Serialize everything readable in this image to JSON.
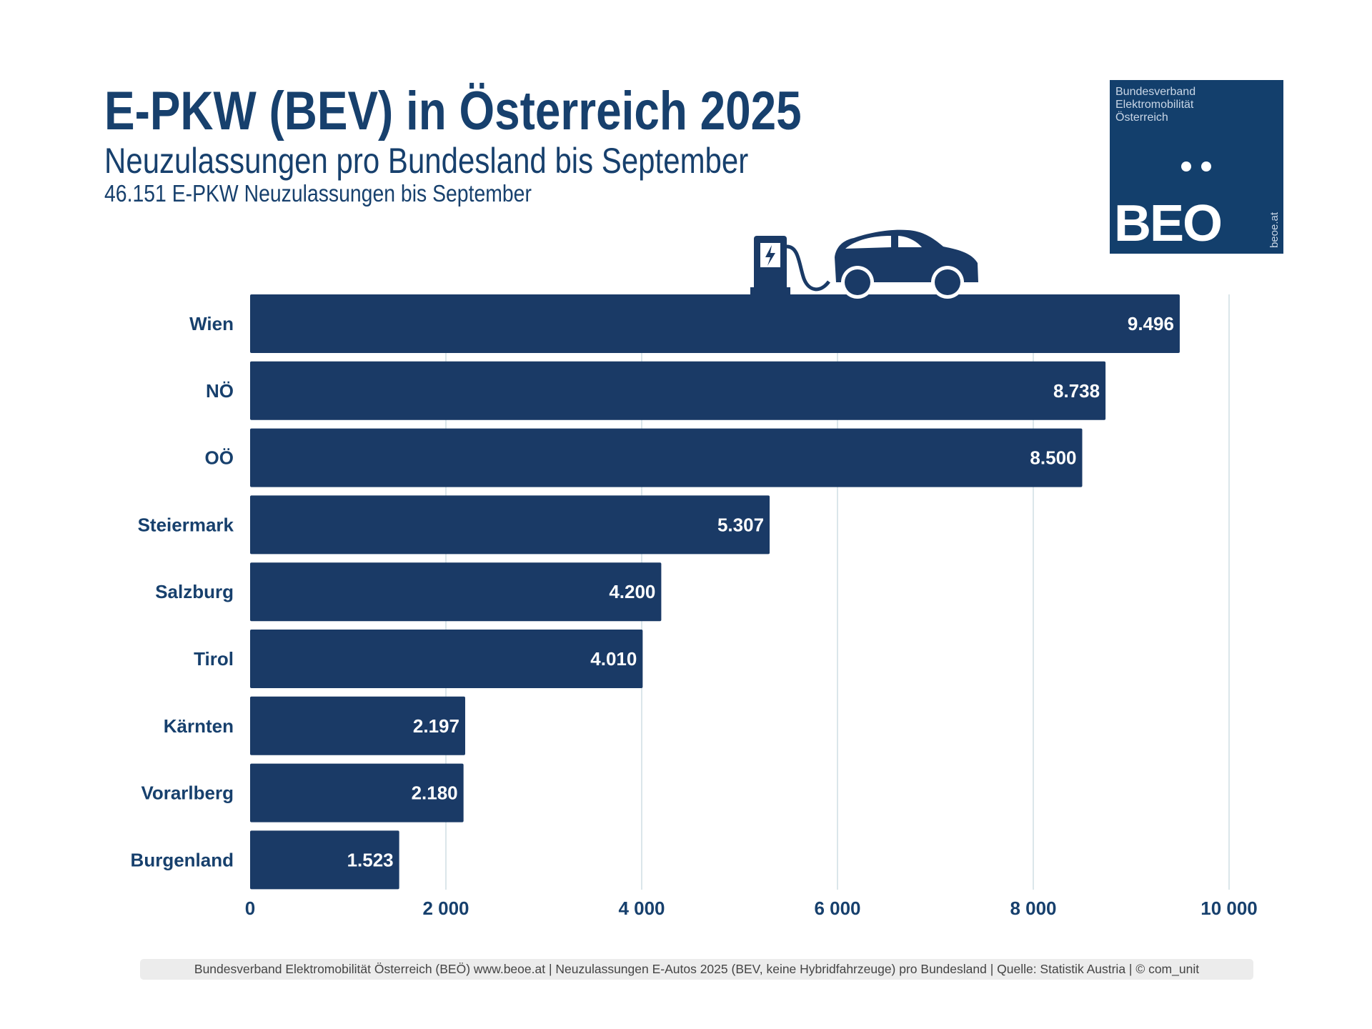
{
  "header": {
    "title": "E-PKW (BEV) in Österreich 2025",
    "subtitle": "Neuzulassungen pro Bundesland bis September",
    "subline": "46.151 E-PKW Neuzulassungen bis September"
  },
  "logo": {
    "org_lines": [
      "Bundesverband",
      "Elektromobilität",
      "Österreich"
    ],
    "wordmark": "BEO",
    "url": "beoe.at"
  },
  "icons": {
    "illustration": "ev-charging-car-icon"
  },
  "colors": {
    "bar": "#1a3a66",
    "text": "#17406d",
    "grid": "#cfdde3",
    "logo_bg": "#133f6c"
  },
  "chart_data": {
    "type": "bar",
    "orientation": "horizontal",
    "categories": [
      "Wien",
      "NÖ",
      "OÖ",
      "Steiermark",
      "Salzburg",
      "Tirol",
      "Kärnten",
      "Vorarlberg",
      "Burgenland"
    ],
    "values": [
      9496,
      8738,
      8500,
      5307,
      4200,
      4010,
      2197,
      2180,
      1523
    ],
    "value_labels": [
      "9.496",
      "8.738",
      "8.500",
      "5.307",
      "4.200",
      "4.010",
      "2.197",
      "2.180",
      "1.523"
    ],
    "xlim": [
      0,
      10000
    ],
    "x_ticks": [
      0,
      2000,
      4000,
      6000,
      8000,
      10000
    ],
    "x_tick_labels": [
      "0",
      "2 000",
      "4 000",
      "6 000",
      "8 000",
      "10 000"
    ],
    "grid": "vertical",
    "legend": "none"
  },
  "footer": {
    "text": "Bundesverband Elektromobilität Österreich (BEÖ) www.beoe.at | Neuzulassungen E-Autos 2025 (BEV, keine Hybridfahrzeuge) pro Bundesland | Quelle: Statistik Austria | © com_unit"
  }
}
